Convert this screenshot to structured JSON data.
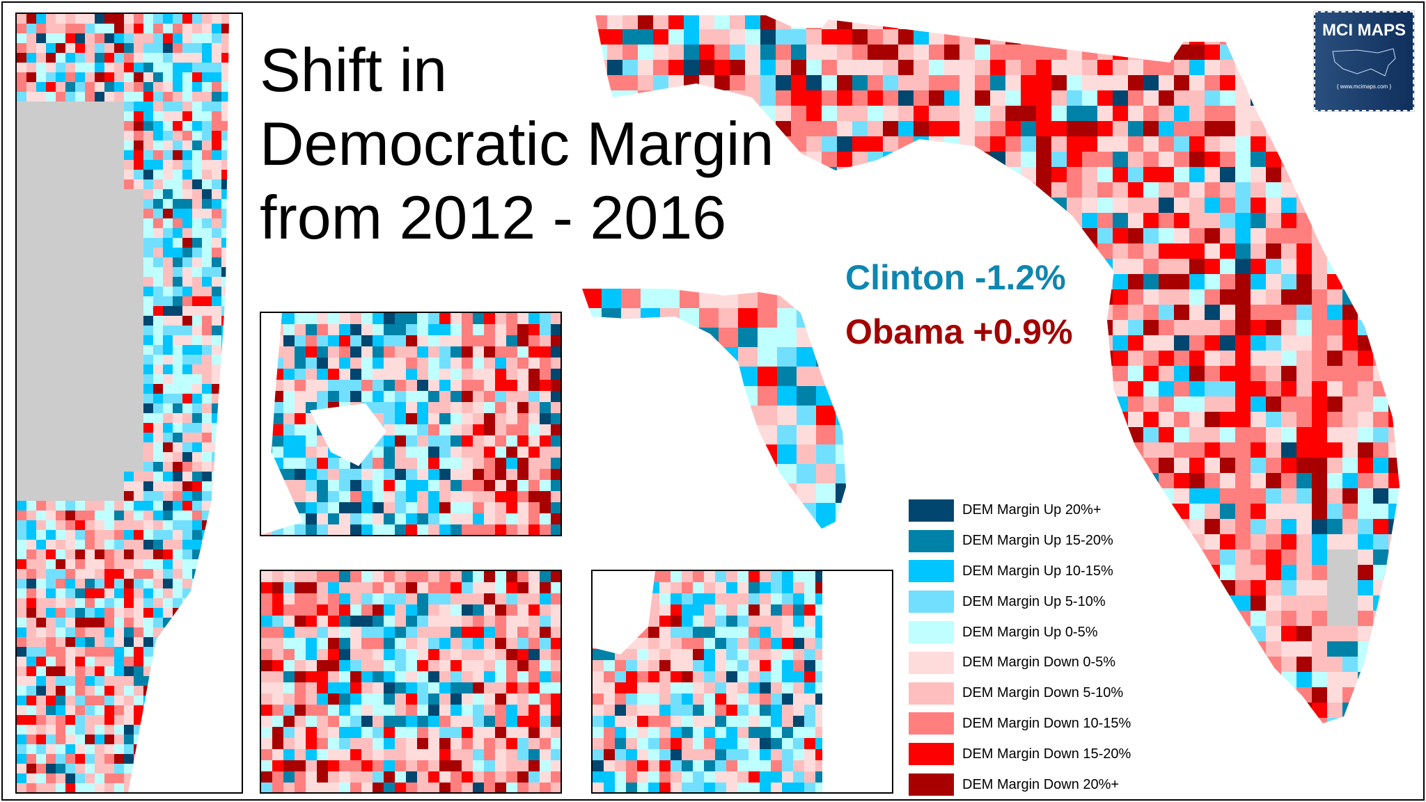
{
  "title_lines": [
    "Shift in",
    "Democratic Margin",
    "from 2012 - 2016"
  ],
  "stats": {
    "clinton": {
      "label": "Clinton  -1.2%",
      "color": "#0e86b0"
    },
    "obama": {
      "label": "Obama  +0.9%",
      "color": "#a30000"
    }
  },
  "logo": {
    "name": "MCI MAPS",
    "url": "{ www.mcimaps.com }"
  },
  "legend": [
    {
      "label": "DEM Margin Up 20%+",
      "color": "#00466e"
    },
    {
      "label": "DEM Margin Up 15-20%",
      "color": "#0082a8"
    },
    {
      "label": "DEM Margin Up 10-15%",
      "color": "#00c5ff"
    },
    {
      "label": "DEM Margin Up 5-10%",
      "color": "#73dfff"
    },
    {
      "label": "DEM Margin Up 0-5%",
      "color": "#bfffff"
    },
    {
      "label": "DEM Margin Down 0-5%",
      "color": "#ffdcdc"
    },
    {
      "label": "DEM Margin Down 5-10%",
      "color": "#ffbebe"
    },
    {
      "label": "DEM Margin Down 10-15%",
      "color": "#ff7f7f"
    },
    {
      "label": "DEM Margin Down 15-20%",
      "color": "#ff0000"
    },
    {
      "label": "DEM Margin Down 20%+",
      "color": "#a80000"
    }
  ],
  "no_data_color": "#cccccc"
}
